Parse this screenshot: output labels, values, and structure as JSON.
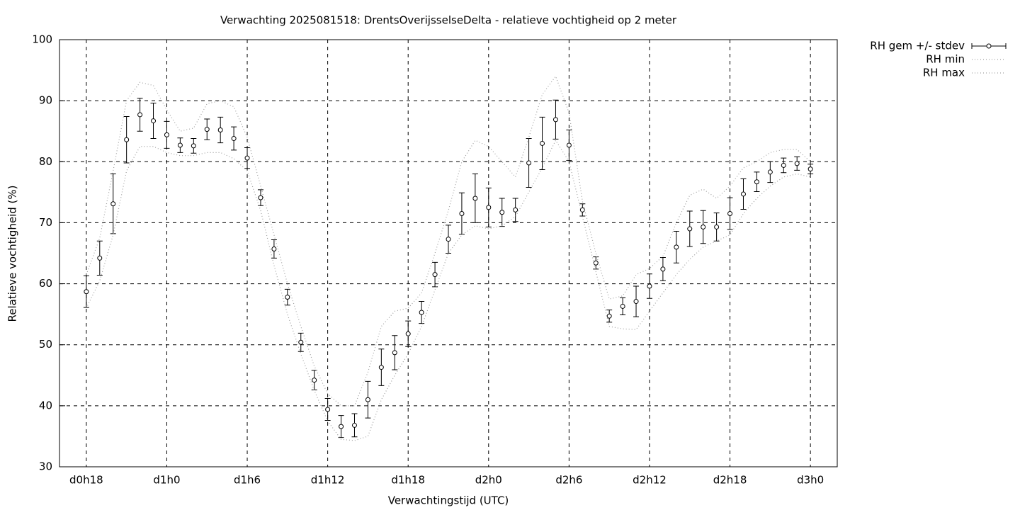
{
  "chart_data": {
    "type": "errorbar",
    "title": "Verwachting 2025081518: DrentsOverijsselseDelta - relatieve vochtigheid op 2 meter",
    "x_label": "Verwachtingstijd (UTC)",
    "y_label": "Relatieve vochtigheid (%)",
    "x": [
      18,
      19,
      20,
      21,
      22,
      23,
      24,
      25,
      26,
      27,
      28,
      29,
      30,
      31,
      32,
      33,
      34,
      35,
      36,
      37,
      38,
      39,
      40,
      41,
      42,
      43,
      44,
      45,
      46,
      47,
      48,
      49,
      50,
      51,
      52,
      53,
      54,
      55,
      56,
      57,
      58,
      59,
      60,
      61,
      62,
      63,
      64,
      65,
      66,
      67,
      68,
      69,
      70,
      71,
      72
    ],
    "xlim": [
      16,
      74
    ],
    "xticks": [
      {
        "value": 18,
        "label": "d0h18"
      },
      {
        "value": 24,
        "label": "d1h0"
      },
      {
        "value": 30,
        "label": "d1h6"
      },
      {
        "value": 36,
        "label": "d1h12"
      },
      {
        "value": 42,
        "label": "d1h18"
      },
      {
        "value": 48,
        "label": "d2h0"
      },
      {
        "value": 54,
        "label": "d2h6"
      },
      {
        "value": 60,
        "label": "d2h12"
      },
      {
        "value": 66,
        "label": "d2h18"
      },
      {
        "value": 72,
        "label": "d3h0"
      }
    ],
    "ylim": [
      30,
      100
    ],
    "yticks": [
      30,
      40,
      50,
      60,
      70,
      80,
      90,
      100
    ],
    "grid": true,
    "legend": "top-right-outside",
    "series": [
      {
        "name": "RH gem +/- stdev",
        "color": "#000000",
        "values": [
          58.7,
          64.2,
          73.1,
          83.6,
          87.7,
          86.7,
          84.4,
          82.7,
          82.6,
          85.3,
          85.2,
          83.8,
          80.6,
          74.1,
          65.7,
          57.8,
          50.4,
          44.2,
          39.4,
          36.6,
          36.8,
          41.0,
          46.3,
          48.7,
          51.8,
          55.3,
          61.5,
          67.3,
          71.5,
          74.0,
          72.5,
          71.7,
          72.1,
          79.8,
          83.0,
          86.9,
          82.7,
          72.1,
          63.4,
          54.7,
          56.3,
          57.1,
          59.6,
          62.4,
          66.0,
          69.0,
          69.3,
          69.3,
          71.5,
          74.7,
          76.7,
          78.3,
          79.4,
          79.7,
          78.8
        ],
        "errors": [
          2.6,
          2.8,
          4.9,
          3.8,
          2.7,
          2.9,
          2.2,
          1.2,
          1.2,
          1.7,
          2.1,
          1.9,
          1.7,
          1.3,
          1.5,
          1.3,
          1.5,
          1.6,
          1.8,
          1.8,
          1.9,
          3.0,
          3.0,
          2.8,
          2.1,
          1.8,
          2.0,
          2.3,
          3.4,
          4.0,
          3.2,
          2.3,
          1.9,
          4.0,
          4.3,
          3.2,
          2.5,
          1.0,
          1.0,
          1.0,
          1.4,
          2.5,
          2.0,
          1.9,
          2.6,
          2.9,
          2.7,
          2.3,
          2.6,
          2.5,
          1.6,
          1.7,
          1.2,
          1.1,
          0.8
        ]
      },
      {
        "name": "RH min",
        "color": "#a0a0a0",
        "values": [
          56,
          60.5,
          68,
          78.5,
          82.5,
          82.5,
          81.5,
          81,
          81,
          81.5,
          81.5,
          80.5,
          78.5,
          72,
          63,
          55,
          48.5,
          42.5,
          37.5,
          34.5,
          34.3,
          35,
          41,
          45,
          48.5,
          53,
          59,
          65,
          68,
          69.5,
          69,
          69.5,
          71,
          75,
          79,
          83.5,
          80,
          71,
          62,
          53,
          52.6,
          52.5,
          55.5,
          58.5,
          61.5,
          64,
          66,
          67,
          68,
          71.5,
          74,
          76,
          77.5,
          78,
          77.5
        ]
      },
      {
        "name": "RH max",
        "color": "#a0a0a0",
        "values": [
          61.5,
          67.5,
          78.5,
          90,
          93,
          92.5,
          88.5,
          85,
          85.5,
          89.5,
          90,
          89,
          84,
          76,
          68,
          60,
          53,
          46.5,
          42,
          40,
          40,
          45.5,
          53,
          55.5,
          56,
          58.5,
          65,
          72,
          80,
          83.5,
          82.5,
          80,
          77.5,
          84,
          91,
          94,
          88,
          73.5,
          65,
          57.5,
          58,
          61.5,
          62.5,
          64.5,
          70,
          74.5,
          75.5,
          74,
          76,
          79,
          80,
          81.5,
          82,
          82,
          80
        ]
      }
    ]
  }
}
